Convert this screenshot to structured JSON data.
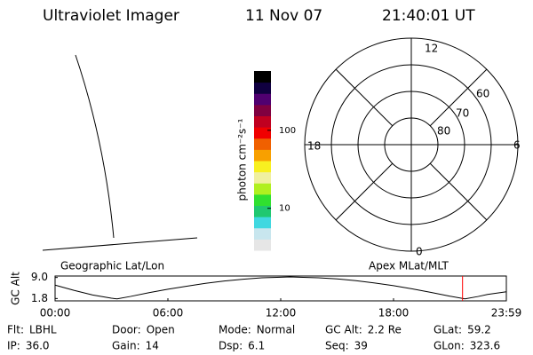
{
  "header": {
    "title": "Ultraviolet Imager",
    "date": "11 Nov 07",
    "time": "21:40:01 UT"
  },
  "colorbar": {
    "label": "photon cm⁻²s⁻¹",
    "log_scale": true,
    "lim": [
      2.9,
      575
    ],
    "ticks": [
      10,
      100
    ],
    "colors": [
      "#e6e6e6",
      "#c8e6ee",
      "#40d8e0",
      "#20c870",
      "#30e030",
      "#b0f020",
      "#f0f0a0",
      "#f8f020",
      "#f8a000",
      "#f06000",
      "#f00000",
      "#c00020",
      "#800040",
      "#500070",
      "#100040",
      "#000000"
    ]
  },
  "polar": {
    "mlt_labels": [
      "12",
      "18",
      "6",
      "0"
    ],
    "lat_labels": [
      "60",
      "70",
      "80"
    ]
  },
  "gc_alt": {
    "type": "line",
    "ylabel": "GC Alt",
    "left_label": "Geographic Lat/Lon",
    "right_label": "Apex MLat/MLT",
    "color": "#000000",
    "marker_color": "#ff0000",
    "marker_x": 21.67,
    "xlim": [
      0,
      24
    ],
    "xticks": [
      {
        "value": 0,
        "label": "00:00"
      },
      {
        "value": 6,
        "label": "06:00"
      },
      {
        "value": 12,
        "label": "12:00"
      },
      {
        "value": 18,
        "label": "18:00"
      },
      {
        "value": 24,
        "label": "23:59"
      }
    ],
    "ylim": [
      1.0,
      9.5
    ],
    "yticks": [
      {
        "value": 9,
        "label": "9.0"
      },
      1.8
    ],
    "x": [
      0,
      1,
      2,
      3,
      3.3,
      4,
      5,
      6,
      7,
      8,
      9,
      10,
      11,
      12,
      12.5,
      13,
      14,
      15,
      16,
      17,
      18,
      19,
      20,
      21,
      21.8,
      22.5,
      23,
      24
    ],
    "values": [
      6.4,
      4.6,
      3.0,
      1.9,
      1.7,
      2.5,
      3.8,
      5.0,
      6.0,
      7.0,
      7.8,
      8.4,
      8.9,
      9.1,
      9.2,
      9.1,
      8.9,
      8.5,
      7.9,
      7.1,
      6.2,
      5.1,
      3.9,
      2.6,
      1.7,
      2.5,
      3.2,
      4.1
    ]
  },
  "info": [
    [
      {
        "label": "Flt:",
        "value": "LBHL"
      },
      {
        "label": "Door:",
        "value": "Open"
      },
      {
        "label": "Mode:",
        "value": "Normal"
      },
      {
        "label": "GC Alt:",
        "value": "2.2 Re"
      },
      {
        "label": "GLat:",
        "value": "59.2"
      }
    ],
    [
      {
        "label": "IP:",
        "value": "36.0"
      },
      {
        "label": "Gain:",
        "value": "14"
      },
      {
        "label": "Dsp:",
        "value": "6.1"
      },
      {
        "label": "Seq:",
        "value": "39"
      },
      {
        "label": "GLon:",
        "value": "323.6"
      }
    ]
  ]
}
